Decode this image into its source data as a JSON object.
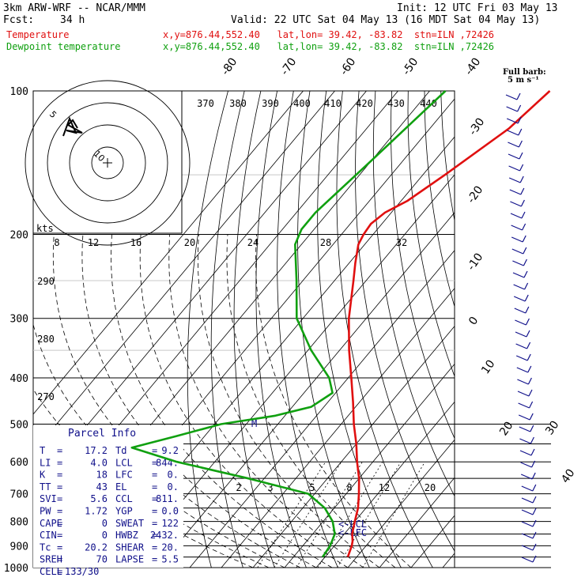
{
  "header": {
    "model": "3km ARW-WRF -- NCAR/MMM",
    "init": "Init: 12 UTC Fri 03 May 13",
    "fcst_label": "Fcst:",
    "fcst_value": "34 h",
    "valid": "Valid: 22 UTC Sat 04 May 13 (16 MDT Sat 04 May 13)"
  },
  "legend": [
    {
      "name": "Temperature",
      "info": "x,y=876.44,552.40   lat,lon= 39.42, -83.82  stn=ILN ,72426",
      "color": "#e01010"
    },
    {
      "name": "Dewpoint temperature",
      "info": "x,y=876.44,552.40   lat,lon= 39.42, -83.82  stn=ILN ,72426",
      "color": "#10a010"
    }
  ],
  "wind_barb_label": {
    "title": "Full barb:",
    "value": "5 m s⁻¹"
  },
  "parcel_info": {
    "title": "Parcel Info",
    "rows": [
      [
        "T",
        "17.2",
        "Td",
        "9.2"
      ],
      [
        "LI",
        "4.0",
        "LCL",
        "844."
      ],
      [
        "K",
        "18",
        "LFC",
        "0."
      ],
      [
        "TT",
        "43",
        "EL",
        "0."
      ],
      [
        "SVI",
        "5.6",
        "CCL",
        "811."
      ],
      [
        "PW",
        "1.72",
        "YGP",
        "0.0"
      ],
      [
        "CAPE",
        "0",
        "SWEAT",
        "122"
      ],
      [
        "CIN",
        "0",
        "HWBZ",
        "2432."
      ],
      [
        "Tc",
        "20.2",
        "SHEAR",
        "20."
      ],
      [
        "SREH",
        "70",
        "LAPSE",
        "5.5"
      ],
      [
        "CELL",
        "133/30",
        "",
        ""
      ]
    ]
  },
  "hodograph": {
    "kts_label": "kts",
    "rings": [
      "5",
      "10"
    ]
  },
  "chart_data": {
    "type": "line",
    "title": "",
    "ylabel": "",
    "pressure_ticks": [
      100,
      200,
      300,
      400,
      500,
      600,
      700,
      800,
      900,
      1000
    ],
    "isotherm_labels": [
      "-80",
      "-70",
      "-60",
      "-50",
      "-40",
      "-30",
      "-20",
      "-10",
      "0",
      "10",
      "20",
      "30",
      "40"
    ],
    "theta_labels_top": [
      "370",
      "380",
      "390",
      "400",
      "410",
      "420",
      "430",
      "440"
    ],
    "mixing_ratio_labels_top": [
      "8",
      "12",
      "16",
      "20",
      "24",
      "28",
      "32"
    ],
    "mixing_ratio_labels_low": [
      "2",
      "3",
      "5",
      "8",
      "12",
      "20"
    ],
    "theta_labels_left": [
      "290",
      "280",
      "270"
    ],
    "annotations": [
      "<-LCL",
      "<-LFC",
      "M"
    ],
    "series": [
      {
        "name": "Temperature",
        "color": "#e01010",
        "points": [
          [
            100,
            -42
          ],
          [
            120,
            -45
          ],
          [
            150,
            -53
          ],
          [
            170,
            -58
          ],
          [
            180,
            -62
          ],
          [
            190,
            -63.5
          ],
          [
            200,
            -63
          ],
          [
            210,
            -62
          ],
          [
            230,
            -58
          ],
          [
            250,
            -54
          ],
          [
            300,
            -45.5
          ],
          [
            350,
            -37
          ],
          [
            400,
            -29
          ],
          [
            450,
            -22
          ],
          [
            500,
            -16
          ],
          [
            550,
            -10
          ],
          [
            600,
            -5
          ],
          [
            650,
            0
          ],
          [
            700,
            4
          ],
          [
            750,
            7.5
          ],
          [
            800,
            10
          ],
          [
            850,
            12.5
          ],
          [
            880,
            14.5
          ],
          [
            900,
            15.5
          ],
          [
            930,
            16.5
          ],
          [
            950,
            17.2
          ]
        ]
      },
      {
        "name": "Dewpoint temperature",
        "color": "#10a010",
        "points": [
          [
            100,
            -75
          ],
          [
            140,
            -80
          ],
          [
            180,
            -84
          ],
          [
            195,
            -84
          ],
          [
            210,
            -82
          ],
          [
            250,
            -72
          ],
          [
            300,
            -62
          ],
          [
            350,
            -49
          ],
          [
            400,
            -36
          ],
          [
            430,
            -31
          ],
          [
            460,
            -34
          ],
          [
            480,
            -43
          ],
          [
            500,
            -58
          ],
          [
            530,
            -69
          ],
          [
            560,
            -80
          ],
          [
            600,
            -62
          ],
          [
            650,
            -35
          ],
          [
            700,
            -12
          ],
          [
            750,
            -3
          ],
          [
            800,
            3
          ],
          [
            850,
            7
          ],
          [
            880,
            8
          ],
          [
            900,
            8.6
          ],
          [
            930,
            9
          ],
          [
            950,
            9.2
          ]
        ]
      }
    ]
  }
}
